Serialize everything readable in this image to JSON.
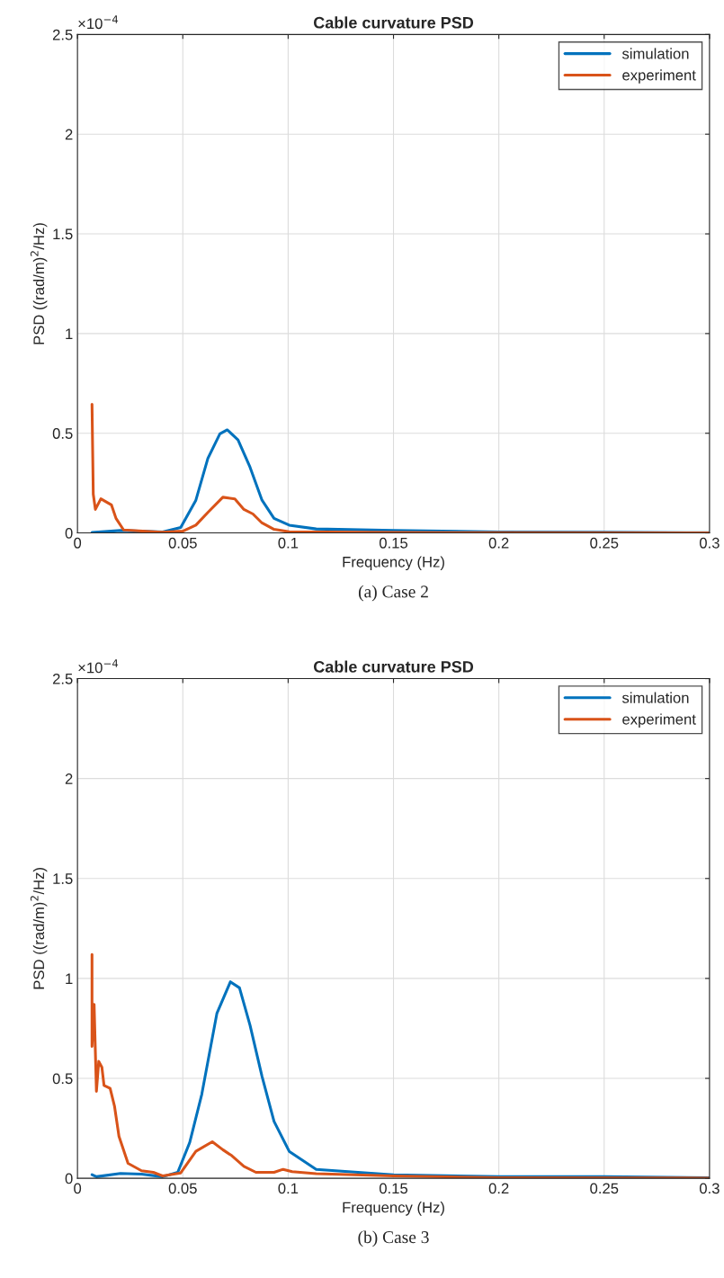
{
  "chart_data": [
    {
      "type": "line",
      "title": "Cable curvature PSD",
      "xlabel": "Frequency (Hz)",
      "ylabel": "PSD ((rad/m)$^{2}$/Hz)",
      "annotations": [
        "×10$^{−4}$",
        "(a) Case 2"
      ],
      "xlim": [
        0,
        0.3
      ],
      "xticks": [
        0,
        0.05,
        0.1,
        0.15,
        0.2,
        0.25,
        0.3
      ],
      "ylim": [
        0,
        2.5
      ],
      "yticks": [
        0,
        0.5,
        1,
        1.5,
        2,
        2.5
      ],
      "grid": true,
      "legend": "top right",
      "line_style": "solid",
      "series": [
        {
          "name": "simulation",
          "color": "#0072bd",
          "x": [
            0.0069,
            0.0204,
            0.0404,
            0.049,
            0.0562,
            0.0619,
            0.0676,
            0.0711,
            0.0762,
            0.0819,
            0.0876,
            0.0933,
            0.1005,
            0.1133,
            0.15,
            0.2,
            0.25,
            0.3
          ],
          "values": [
            0.002,
            0.012,
            0.005,
            0.027,
            0.164,
            0.374,
            0.497,
            0.517,
            0.467,
            0.33,
            0.164,
            0.073,
            0.039,
            0.02,
            0.012,
            0.005,
            0.003,
            0.001
          ]
        },
        {
          "name": "experiment",
          "color": "#d95319",
          "x": [
            0.0069,
            0.0075,
            0.0085,
            0.0111,
            0.0161,
            0.0183,
            0.0219,
            0.04,
            0.05,
            0.0562,
            0.0619,
            0.069,
            0.0747,
            0.079,
            0.0833,
            0.0876,
            0.0933,
            0.1005,
            0.15,
            0.2,
            0.3
          ],
          "values": [
            0.645,
            0.194,
            0.118,
            0.171,
            0.141,
            0.073,
            0.015,
            0.003,
            0.009,
            0.039,
            0.103,
            0.179,
            0.171,
            0.118,
            0.095,
            0.05,
            0.018,
            0.006,
            0.002,
            0.001,
            0
          ]
        }
      ]
    },
    {
      "type": "line",
      "title": "Cable curvature PSD",
      "xlabel": "Frequency (Hz)",
      "ylabel": "PSD ((rad/m)$^{2}$/Hz)",
      "annotations": [
        "×10$^{−4}$",
        "(b) Case 3"
      ],
      "xlim": [
        0,
        0.3
      ],
      "xticks": [
        0,
        0.05,
        0.1,
        0.15,
        0.2,
        0.25,
        0.3
      ],
      "ylim": [
        0,
        2.5
      ],
      "yticks": [
        0,
        0.5,
        1,
        1.5,
        2,
        2.5
      ],
      "grid": true,
      "legend": "top right",
      "line_style": "solid",
      "series": [
        {
          "name": "simulation",
          "color": "#0072bd",
          "x": [
            0.0069,
            0.009,
            0.0204,
            0.0304,
            0.0404,
            0.0476,
            0.0533,
            0.059,
            0.0662,
            0.0726,
            0.0769,
            0.0819,
            0.0876,
            0.0933,
            0.1005,
            0.1133,
            0.15,
            0.2,
            0.25,
            0.3
          ],
          "values": [
            0.018,
            0.008,
            0.024,
            0.021,
            0.008,
            0.03,
            0.18,
            0.42,
            0.826,
            0.983,
            0.953,
            0.766,
            0.51,
            0.285,
            0.135,
            0.045,
            0.018,
            0.008,
            0.008,
            0.003
          ]
        },
        {
          "name": "experiment",
          "color": "#d95319",
          "x": [
            0.0069,
            0.0069,
            0.0079,
            0.009,
            0.0101,
            0.0116,
            0.0126,
            0.0155,
            0.0176,
            0.0197,
            0.024,
            0.0304,
            0.036,
            0.0404,
            0.049,
            0.0562,
            0.064,
            0.069,
            0.0733,
            0.079,
            0.0847,
            0.0933,
            0.0976,
            0.1019,
            0.1133,
            0.15,
            0.2,
            0.3
          ],
          "values": [
            1.12,
            0.66,
            0.87,
            0.435,
            0.585,
            0.555,
            0.465,
            0.45,
            0.36,
            0.21,
            0.075,
            0.038,
            0.03,
            0.012,
            0.027,
            0.135,
            0.183,
            0.143,
            0.113,
            0.06,
            0.03,
            0.03,
            0.045,
            0.033,
            0.023,
            0.012,
            0.003,
            0.001
          ]
        }
      ]
    }
  ]
}
